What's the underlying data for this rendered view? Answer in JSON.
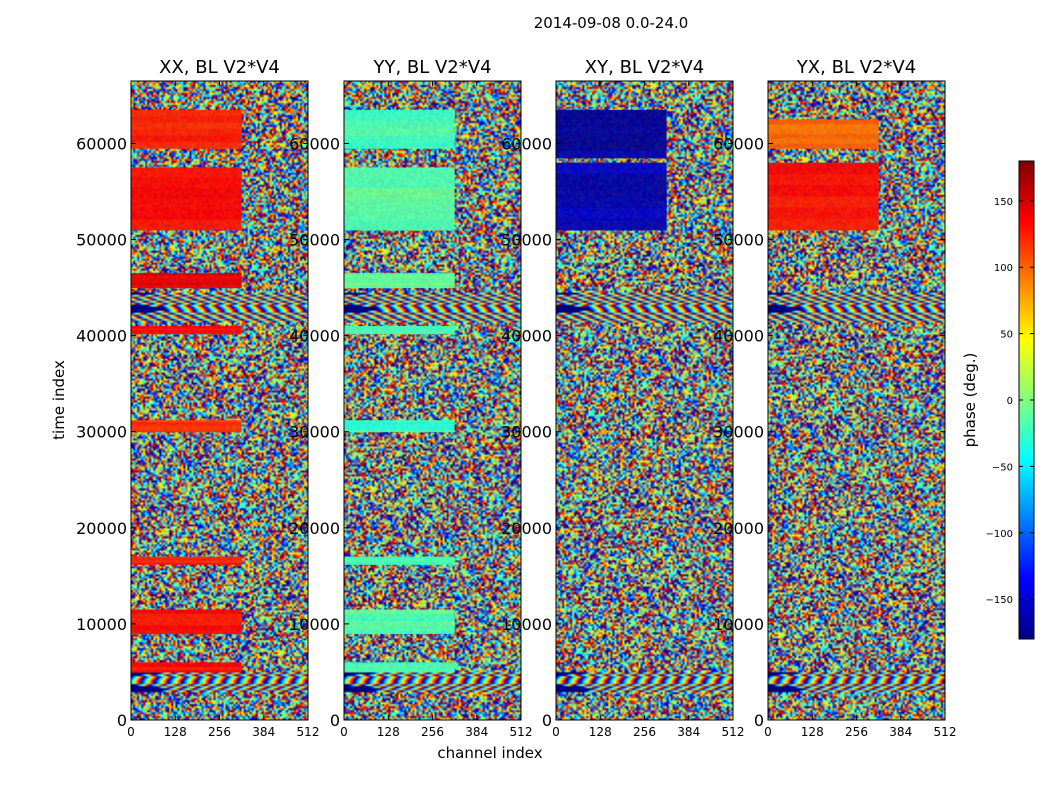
{
  "figure_title": "2014-09-08 0.0-24.0",
  "colormap": {
    "name": "jet",
    "stops": [
      "#00007f",
      "#0000ff",
      "#007fff",
      "#00ffff",
      "#7fff7f",
      "#ffff00",
      "#ff7f00",
      "#ff0000",
      "#7f0000"
    ]
  },
  "chart_data": [
    {
      "type": "heatmap",
      "title": "XX, BL V2*V4",
      "xlabel": "channel index",
      "ylabel": "time index",
      "xlim": [
        0,
        512
      ],
      "ylim": [
        0,
        66500
      ],
      "xticks": [
        0,
        128,
        256,
        384,
        512
      ],
      "yticks": [
        0,
        10000,
        20000,
        30000,
        40000,
        50000,
        60000
      ],
      "z_quantity": "phase (deg.)",
      "zlim": [
        -180,
        180
      ],
      "coherent_regions": [
        {
          "ch": [
            0,
            320
          ],
          "t": [
            59500,
            63500
          ],
          "phase": 125
        },
        {
          "ch": [
            0,
            320
          ],
          "t": [
            51000,
            57500
          ],
          "phase": 135
        },
        {
          "ch": [
            0,
            320
          ],
          "t": [
            45000,
            46500
          ],
          "phase": 145
        },
        {
          "ch": [
            0,
            320
          ],
          "t": [
            40200,
            41000
          ],
          "phase": 130
        },
        {
          "ch": [
            0,
            320
          ],
          "t": [
            30000,
            31200
          ],
          "phase": 115
        },
        {
          "ch": [
            0,
            320
          ],
          "t": [
            16200,
            17000
          ],
          "phase": 125
        },
        {
          "ch": [
            0,
            320
          ],
          "t": [
            9000,
            11500
          ],
          "phase": 130
        },
        {
          "ch": [
            0,
            320
          ],
          "t": [
            5000,
            6000
          ],
          "phase": 130
        }
      ]
    },
    {
      "type": "heatmap",
      "title": "YY, BL V2*V4",
      "xlabel": "channel index",
      "ylabel": "",
      "xlim": [
        0,
        512
      ],
      "ylim": [
        0,
        66500
      ],
      "xticks": [
        0,
        128,
        256,
        384,
        512
      ],
      "yticks": [
        0,
        10000,
        20000,
        30000,
        40000,
        50000,
        60000
      ],
      "z_quantity": "phase (deg.)",
      "zlim": [
        -180,
        180
      ],
      "coherent_regions": [
        {
          "ch": [
            0,
            320
          ],
          "t": [
            59500,
            63500
          ],
          "phase": -20
        },
        {
          "ch": [
            0,
            320
          ],
          "t": [
            51000,
            57500
          ],
          "phase": -15
        },
        {
          "ch": [
            0,
            320
          ],
          "t": [
            45000,
            46500
          ],
          "phase": -10
        },
        {
          "ch": [
            0,
            320
          ],
          "t": [
            40200,
            41000
          ],
          "phase": -20
        },
        {
          "ch": [
            0,
            320
          ],
          "t": [
            30000,
            31200
          ],
          "phase": -25
        },
        {
          "ch": [
            0,
            320
          ],
          "t": [
            16200,
            17000
          ],
          "phase": -20
        },
        {
          "ch": [
            0,
            320
          ],
          "t": [
            9000,
            11500
          ],
          "phase": -15
        },
        {
          "ch": [
            0,
            320
          ],
          "t": [
            5000,
            6000
          ],
          "phase": -20
        }
      ]
    },
    {
      "type": "heatmap",
      "title": "XY, BL V2*V4",
      "xlabel": "",
      "ylabel": "",
      "xlim": [
        0,
        512
      ],
      "ylim": [
        0,
        66500
      ],
      "xticks": [
        0,
        128,
        256,
        384,
        512
      ],
      "yticks": [
        0,
        10000,
        20000,
        30000,
        40000,
        50000,
        60000
      ],
      "z_quantity": "phase (deg.)",
      "zlim": [
        -180,
        180
      ],
      "coherent_regions": [
        {
          "ch": [
            0,
            320
          ],
          "t": [
            58500,
            63500
          ],
          "phase": -170
        },
        {
          "ch": [
            0,
            320
          ],
          "t": [
            51000,
            58000
          ],
          "phase": -160
        }
      ]
    },
    {
      "type": "heatmap",
      "title": "YX, BL V2*V4",
      "xlabel": "",
      "ylabel": "",
      "xlim": [
        0,
        512
      ],
      "ylim": [
        0,
        66500
      ],
      "xticks": [
        0,
        128,
        256,
        384,
        512
      ],
      "yticks": [
        0,
        10000,
        20000,
        30000,
        40000,
        50000,
        60000
      ],
      "z_quantity": "phase (deg.)",
      "zlim": [
        -180,
        180
      ],
      "coherent_regions": [
        {
          "ch": [
            0,
            320
          ],
          "t": [
            51000,
            58000
          ],
          "phase": 130
        },
        {
          "ch": [
            0,
            320
          ],
          "t": [
            59500,
            62500
          ],
          "phase": 100
        }
      ]
    }
  ],
  "colorbar": {
    "label": "phase (deg.)",
    "range": [
      -180,
      180
    ],
    "ticks": [
      -150,
      -100,
      -50,
      0,
      50,
      100,
      150
    ],
    "tick_labels": [
      "−150",
      "−100",
      "−50",
      "0",
      "50",
      "100",
      "150"
    ]
  }
}
